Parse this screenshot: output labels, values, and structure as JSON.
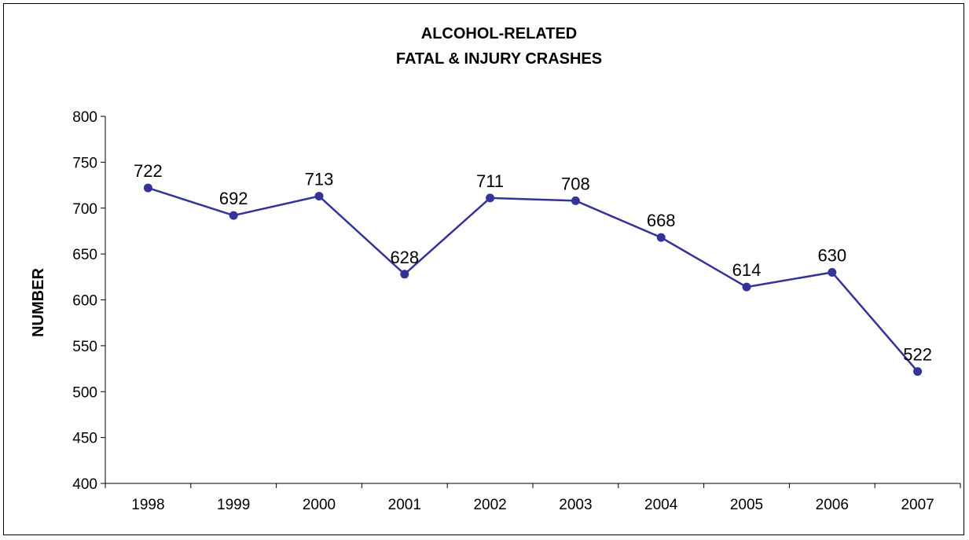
{
  "chart_data": {
    "type": "line",
    "title": [
      "ALCOHOL-RELATED",
      "FATAL & INJURY CRASHES"
    ],
    "xlabel": "",
    "ylabel": "NUMBER",
    "categories": [
      "1998",
      "1999",
      "2000",
      "2001",
      "2002",
      "2003",
      "2004",
      "2005",
      "2006",
      "2007"
    ],
    "series": [
      {
        "values": [
          722,
          692,
          713,
          628,
          711,
          708,
          668,
          614,
          630,
          522
        ],
        "color": "#333399"
      }
    ],
    "ylim": [
      400,
      800
    ],
    "yticks": [
      "400",
      "450",
      "500",
      "550",
      "600",
      "650",
      "700",
      "750",
      "800"
    ],
    "data_labels": [
      "722",
      "692",
      "713",
      "628",
      "711",
      "708",
      "668",
      "614",
      "630",
      "522"
    ],
    "grid": false,
    "legend": "none"
  }
}
